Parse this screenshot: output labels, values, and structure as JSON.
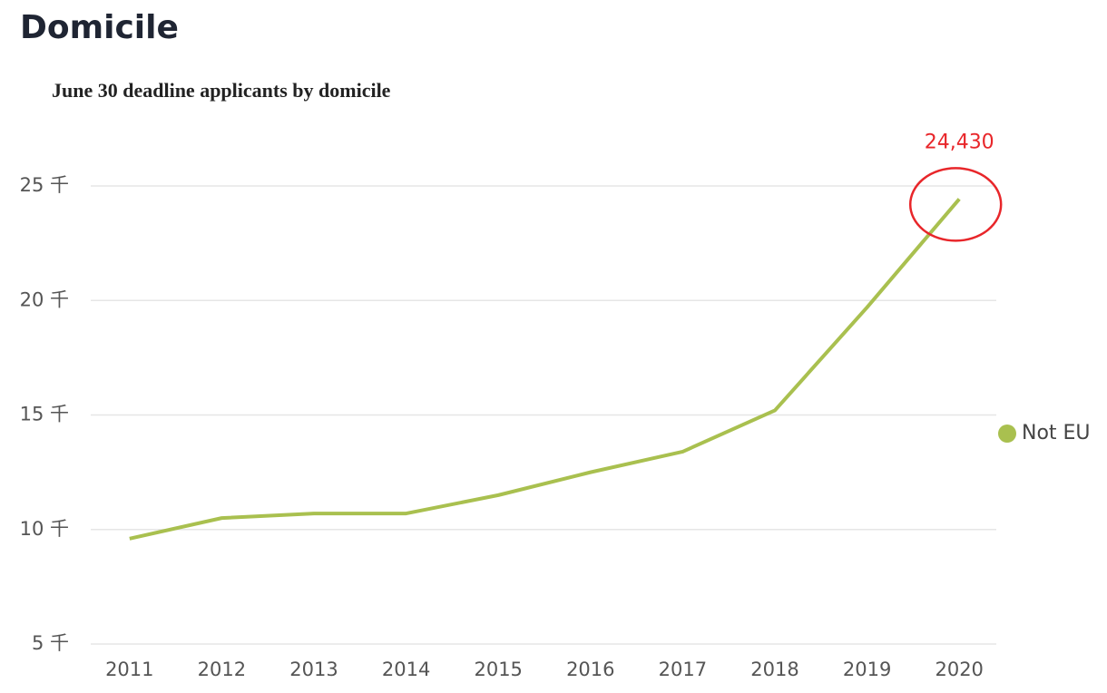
{
  "page_title": "Domicile",
  "chart_data": {
    "type": "line",
    "title": "June 30 deadline applicants by domicile",
    "categories": [
      "2011",
      "2012",
      "2013",
      "2014",
      "2015",
      "2016",
      "2017",
      "2018",
      "2019",
      "2020"
    ],
    "series": [
      {
        "name": "Not EU",
        "color": "#a9c04f",
        "values": [
          9600,
          10500,
          10700,
          10700,
          11500,
          12500,
          13400,
          15200,
          19700,
          24430
        ],
        "value_labels": [
          null,
          null,
          null,
          null,
          null,
          null,
          null,
          null,
          null,
          "24,430"
        ]
      }
    ],
    "ylim": [
      5000,
      25000
    ],
    "yticks": [
      {
        "value": 5000,
        "label": "5 千"
      },
      {
        "value": 10000,
        "label": "10 千"
      },
      {
        "value": 15000,
        "label": "15 千"
      },
      {
        "value": 20000,
        "label": "20 千"
      },
      {
        "value": 25000,
        "label": "25 千"
      }
    ],
    "grid": true,
    "legend": "right",
    "annotation_color": "#e8262a"
  }
}
